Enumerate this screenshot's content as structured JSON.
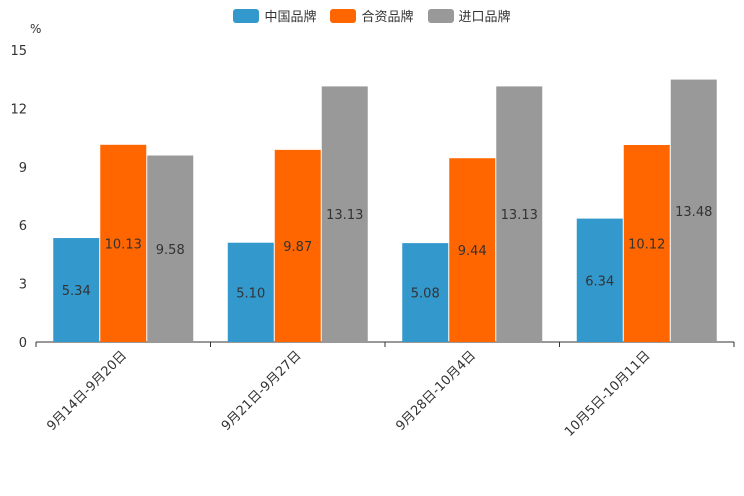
{
  "chart_data": {
    "type": "bar",
    "ylabel": "%",
    "ylim": [
      0,
      15
    ],
    "yticks": [
      "0",
      "3",
      "6",
      "9",
      "12",
      "15"
    ],
    "categories": [
      "9月14日-9月20日",
      "9月21日-9月27日",
      "9月28日-10月4日",
      "10月5日-10月11日"
    ],
    "series": [
      {
        "name": "中国品牌",
        "color": "#3399cc",
        "values": [
          5.34,
          5.1,
          5.08,
          6.34
        ],
        "labels": [
          "5.34",
          "5.10",
          "5.08",
          "6.34"
        ]
      },
      {
        "name": "合资品牌",
        "color": "#ff6600",
        "values": [
          10.13,
          9.87,
          9.44,
          10.12
        ],
        "labels": [
          "10.13",
          "9.87",
          "9.44",
          "10.12"
        ]
      },
      {
        "name": "进口品牌",
        "color": "#999999",
        "values": [
          9.58,
          13.13,
          13.13,
          13.48
        ],
        "labels": [
          "9.58",
          "13.13",
          "13.13",
          "13.48"
        ]
      }
    ]
  }
}
